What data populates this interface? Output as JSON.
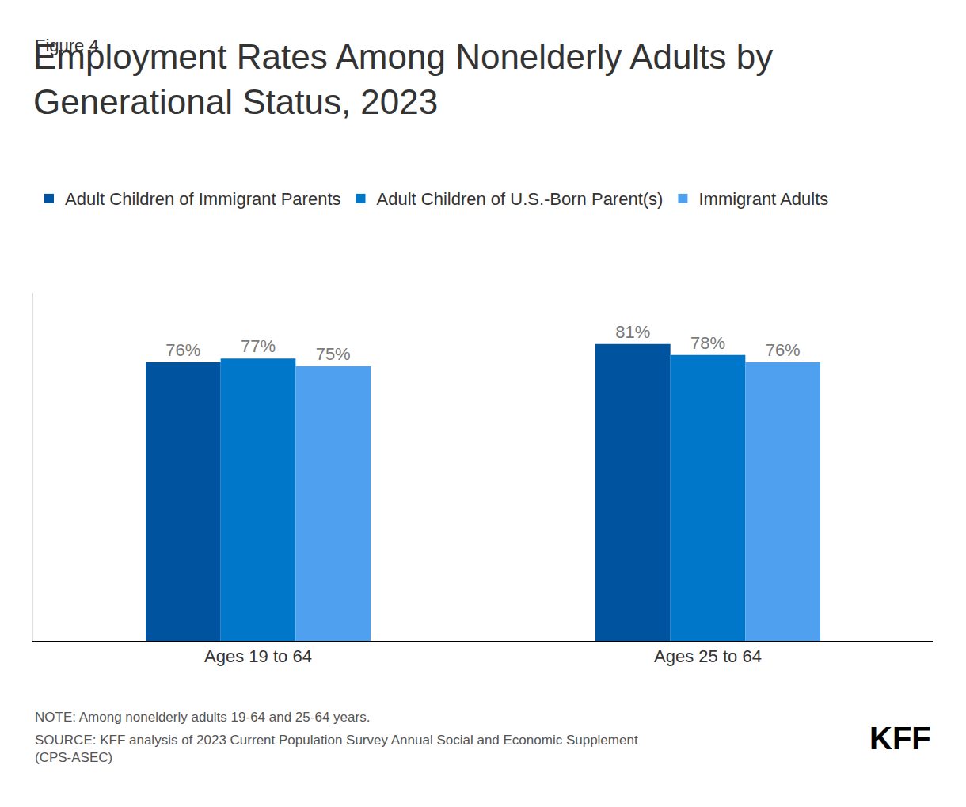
{
  "chart_data": {
    "type": "bar",
    "figure_label": "Figure 4",
    "title": "Employment Rates Among Nonelderly Adults by Generational Status, 2023",
    "categories": [
      "Ages 19 to 64",
      "Ages 25 to 64"
    ],
    "series": [
      {
        "name": "Adult Children of Immigrant Parents",
        "color": "#00539f",
        "values": [
          76,
          81
        ],
        "value_labels": [
          "76%",
          "81%"
        ]
      },
      {
        "name": "Adult Children of U.S.-Born Parent(s)",
        "color": "#0077c9",
        "values": [
          77,
          78
        ],
        "value_labels": [
          "77%",
          "78%"
        ]
      },
      {
        "name": "Immigrant Adults",
        "color": "#50a0f0",
        "values": [
          75,
          76
        ],
        "value_labels": [
          "75%",
          "76%"
        ]
      }
    ],
    "ylim": [
      0,
      95
    ],
    "tick_labels": "x",
    "data_labels": true,
    "legend": "top-left",
    "grid": false,
    "note": "NOTE: Among nonelderly adults 19-64 and 25-64 years.",
    "source": "SOURCE: KFF analysis of 2023 Current Population Survey Annual Social and Economic Supplement (CPS-ASEC)",
    "logo": "KFF"
  }
}
